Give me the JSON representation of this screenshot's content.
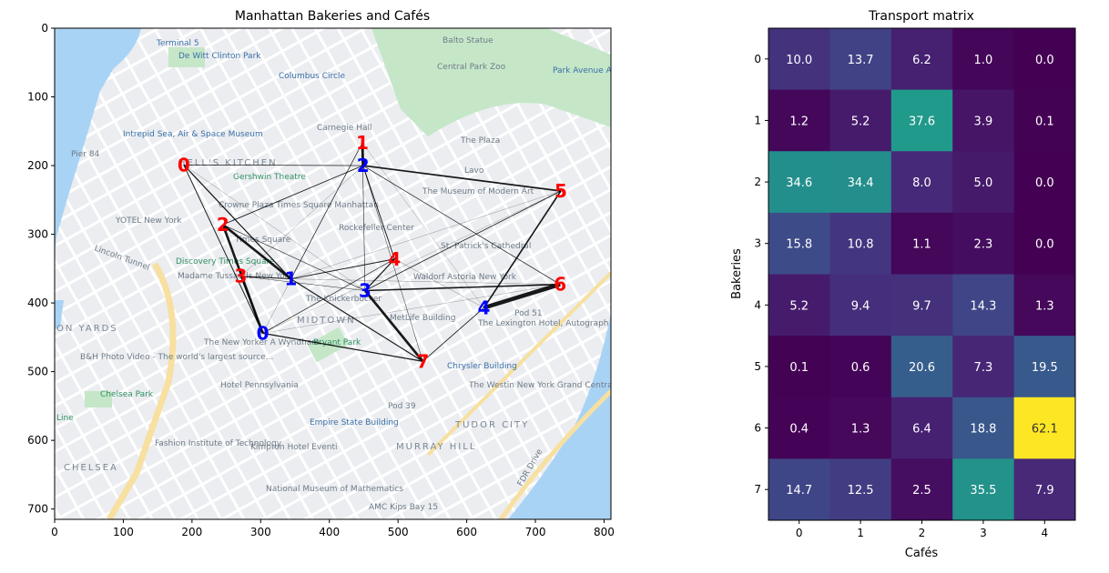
{
  "chart_data": [
    {
      "type": "scatter",
      "title": "Manhattan Bakeries and Cafés",
      "xlim": [
        0,
        810
      ],
      "ylim": [
        715,
        0
      ],
      "x_ticks": [
        0,
        100,
        200,
        300,
        400,
        500,
        600,
        700,
        800
      ],
      "y_ticks": [
        0,
        100,
        200,
        300,
        400,
        500,
        600,
        700
      ],
      "bakery_color": "#ff0000",
      "cafe_color": "#0000ff",
      "bakeries": [
        {
          "label": "0",
          "x": 188,
          "y": 199
        },
        {
          "label": "1",
          "x": 448,
          "y": 167
        },
        {
          "label": "2",
          "x": 245,
          "y": 286
        },
        {
          "label": "3",
          "x": 271,
          "y": 361
        },
        {
          "label": "4",
          "x": 495,
          "y": 336
        },
        {
          "label": "5",
          "x": 737,
          "y": 237
        },
        {
          "label": "6",
          "x": 736,
          "y": 373
        },
        {
          "label": "7",
          "x": 536,
          "y": 485
        }
      ],
      "cafes": [
        {
          "label": "0",
          "x": 303,
          "y": 444
        },
        {
          "label": "1",
          "x": 344,
          "y": 365
        },
        {
          "label": "2",
          "x": 449,
          "y": 200
        },
        {
          "label": "3",
          "x": 452,
          "y": 382
        },
        {
          "label": "4",
          "x": 625,
          "y": 407
        }
      ],
      "map_labels": [
        "Terminal 5",
        "Balto Statue",
        "De Witt Clinton Park",
        "Columbus Circle",
        "Central Park Zoo",
        "Park Avenue A",
        "Intrepid Sea, Air & Space Museum",
        "Carnegie Hall",
        "The Plaza",
        "Pier 84",
        "HELL'S KITCHEN",
        "Gershwin Theatre",
        "Lavo",
        "The Museum of Modern Art",
        "Crowne Plaza Times Square Manhattan",
        "YOTEL New York",
        "Rockefeller Center",
        "Times Square",
        "St. Patrick's Cathedral",
        "Lincoln Tunnel",
        "Discovery Times Square",
        "Madame Tussauds New York",
        "Waldorf Astoria New York",
        "The Knickerbocker",
        "MIDTOWN",
        "Pod 51",
        "ON YARDS",
        "MetLife Building",
        "The Lexington Hotel, Autograph Collection",
        "The New Yorker A Wyndham",
        "Bryant Park",
        "B&H Photo Video - The world's largest source...",
        "Chrysler Building",
        "Hotel Pennsylvania",
        "The Westin New York Grand Central",
        "Chelsea Park",
        "Pod 39",
        "Empire State Building",
        "TUDOR CITY",
        "Line",
        "Fashion Institute of Technology",
        "Kimpton Hotel Eventi",
        "MURRAY HILL",
        "CHELSEA",
        "National Museum of Mathematics",
        "AMC Kips Bay 15",
        "FDR Drive"
      ]
    },
    {
      "type": "heatmap",
      "title": "Transport matrix",
      "xlabel": "Cafés",
      "ylabel": "Bakeries",
      "x_categories": [
        "0",
        "1",
        "2",
        "3",
        "4"
      ],
      "y_categories": [
        "0",
        "1",
        "2",
        "3",
        "4",
        "5",
        "6",
        "7"
      ],
      "colormap": "viridis",
      "values": [
        [
          10.0,
          13.7,
          6.2,
          1.0,
          0.0
        ],
        [
          1.2,
          5.2,
          37.6,
          3.9,
          0.1
        ],
        [
          34.6,
          34.4,
          8.0,
          5.0,
          0.0
        ],
        [
          15.8,
          10.8,
          1.1,
          2.3,
          0.0
        ],
        [
          5.2,
          9.4,
          9.7,
          14.3,
          1.3
        ],
        [
          0.1,
          0.6,
          20.6,
          7.3,
          19.5
        ],
        [
          0.4,
          1.3,
          6.4,
          18.8,
          62.1
        ],
        [
          14.7,
          12.5,
          2.5,
          35.5,
          7.9
        ]
      ],
      "value_labels": [
        [
          "10.0",
          "13.7",
          "6.2",
          "1.0",
          "0.0"
        ],
        [
          "1.2",
          "5.2",
          "37.6",
          "3.9",
          "0.1"
        ],
        [
          "34.6",
          "34.4",
          "8.0",
          "5.0",
          "0.0"
        ],
        [
          "15.8",
          "10.8",
          "1.1",
          "2.3",
          "0.0"
        ],
        [
          "5.2",
          "9.4",
          "9.7",
          "14.3",
          "1.3"
        ],
        [
          "0.1",
          "0.6",
          "20.6",
          "7.3",
          "19.5"
        ],
        [
          "0.4",
          "1.3",
          "6.4",
          "18.8",
          "62.1"
        ],
        [
          "14.7",
          "12.5",
          "2.5",
          "35.5",
          "7.9"
        ]
      ]
    }
  ]
}
